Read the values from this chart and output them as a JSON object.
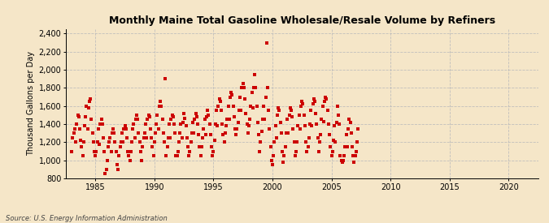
{
  "title": "Monthly Maine Total Gasoline Wholesale/Resale Volume by Refiners",
  "ylabel": "Thousand Gallons per Day",
  "source": "Source: U.S. Energy Information Administration",
  "bg_color": "#F5E6C8",
  "plot_bg_color": "#F5E6C8",
  "marker_color": "#CC0000",
  "marker_size": 5,
  "xlim": [
    1982.5,
    2022.5
  ],
  "ylim": [
    800,
    2450
  ],
  "yticks": [
    800,
    1000,
    1200,
    1400,
    1600,
    1800,
    2000,
    2200,
    2400
  ],
  "xticks": [
    1985,
    1990,
    1995,
    2000,
    2005,
    2010,
    2015,
    2020
  ],
  "grid_color": "#BBBBBB",
  "data_x": [
    1983.0,
    1983.083,
    1983.167,
    1983.25,
    1983.333,
    1983.417,
    1983.5,
    1983.583,
    1983.667,
    1983.75,
    1983.833,
    1983.917,
    1984.0,
    1984.083,
    1984.167,
    1984.25,
    1984.333,
    1984.417,
    1984.5,
    1984.583,
    1984.667,
    1984.75,
    1984.833,
    1984.917,
    1985.0,
    1985.083,
    1985.167,
    1985.25,
    1985.333,
    1985.417,
    1985.5,
    1985.583,
    1985.667,
    1985.75,
    1985.833,
    1985.917,
    1986.0,
    1986.083,
    1986.167,
    1986.25,
    1986.333,
    1986.417,
    1986.5,
    1986.583,
    1986.667,
    1986.75,
    1986.833,
    1986.917,
    1987.0,
    1987.083,
    1987.167,
    1987.25,
    1987.333,
    1987.417,
    1987.5,
    1987.583,
    1987.667,
    1987.75,
    1987.833,
    1987.917,
    1988.0,
    1988.083,
    1988.167,
    1988.25,
    1988.333,
    1988.417,
    1988.5,
    1988.583,
    1988.667,
    1988.75,
    1988.833,
    1988.917,
    1989.0,
    1989.083,
    1989.167,
    1989.25,
    1989.333,
    1989.417,
    1989.5,
    1989.583,
    1989.667,
    1989.75,
    1989.833,
    1989.917,
    1990.0,
    1990.083,
    1990.167,
    1990.25,
    1990.333,
    1990.417,
    1990.5,
    1990.583,
    1990.667,
    1990.75,
    1990.833,
    1990.917,
    1991.0,
    1991.083,
    1991.167,
    1991.25,
    1991.333,
    1991.417,
    1991.5,
    1991.583,
    1991.667,
    1991.75,
    1991.833,
    1991.917,
    1992.0,
    1992.083,
    1992.167,
    1992.25,
    1992.333,
    1992.417,
    1992.5,
    1992.583,
    1992.667,
    1992.75,
    1992.833,
    1992.917,
    1993.0,
    1993.083,
    1993.167,
    1993.25,
    1993.333,
    1993.417,
    1993.5,
    1993.583,
    1993.667,
    1993.75,
    1993.833,
    1993.917,
    1994.0,
    1994.083,
    1994.167,
    1994.25,
    1994.333,
    1994.417,
    1994.5,
    1994.583,
    1994.667,
    1994.75,
    1994.833,
    1994.917,
    1995.0,
    1995.083,
    1995.167,
    1995.25,
    1995.333,
    1995.417,
    1995.5,
    1995.583,
    1995.667,
    1995.75,
    1995.833,
    1995.917,
    1996.0,
    1996.083,
    1996.167,
    1996.25,
    1996.333,
    1996.417,
    1996.5,
    1996.583,
    1996.667,
    1996.75,
    1996.833,
    1996.917,
    1997.0,
    1997.083,
    1997.167,
    1997.25,
    1997.333,
    1997.417,
    1997.5,
    1997.583,
    1997.667,
    1997.75,
    1997.833,
    1997.917,
    1998.0,
    1998.083,
    1998.167,
    1998.25,
    1998.333,
    1998.417,
    1998.5,
    1998.583,
    1998.667,
    1998.75,
    1998.833,
    1998.917,
    1999.0,
    1999.083,
    1999.167,
    1999.25,
    1999.333,
    1999.417,
    1999.5,
    1999.583,
    1999.667,
    1999.75,
    1999.833,
    1999.917,
    2000.0,
    2000.083,
    2000.167,
    2000.25,
    2000.333,
    2000.417,
    2000.5,
    2000.583,
    2000.667,
    2000.75,
    2000.833,
    2000.917,
    2001.0,
    2001.083,
    2001.167,
    2001.25,
    2001.333,
    2001.417,
    2001.5,
    2001.583,
    2001.667,
    2001.75,
    2001.833,
    2001.917,
    2002.0,
    2002.083,
    2002.167,
    2002.25,
    2002.333,
    2002.417,
    2002.5,
    2002.583,
    2002.667,
    2002.75,
    2002.833,
    2002.917,
    2003.0,
    2003.083,
    2003.167,
    2003.25,
    2003.333,
    2003.417,
    2003.5,
    2003.583,
    2003.667,
    2003.75,
    2003.833,
    2003.917,
    2004.0,
    2004.083,
    2004.167,
    2004.25,
    2004.333,
    2004.417,
    2004.5,
    2004.583,
    2004.667,
    2004.75,
    2004.833,
    2004.917,
    2005.0,
    2005.083,
    2005.167,
    2005.25,
    2005.333,
    2005.417,
    2005.5,
    2005.583,
    2005.667,
    2005.75,
    2005.833,
    2005.917,
    2006.0,
    2006.083,
    2006.167,
    2006.25,
    2006.333,
    2006.417,
    2006.5,
    2006.583,
    2006.667,
    2006.75,
    2006.833,
    2006.917,
    2007.0,
    2007.083,
    2007.167,
    2007.25
  ],
  "data_y": [
    1100,
    1250,
    1300,
    1350,
    1200,
    1400,
    1500,
    1480,
    1350,
    1220,
    1150,
    1050,
    1200,
    1380,
    1480,
    1600,
    1350,
    1580,
    1650,
    1680,
    1450,
    1300,
    1200,
    1100,
    1050,
    1100,
    1200,
    1350,
    1180,
    1400,
    1450,
    1400,
    1250,
    1100,
    850,
    900,
    1000,
    1150,
    1200,
    1250,
    1100,
    1300,
    1350,
    1300,
    1200,
    1100,
    950,
    900,
    1050,
    1150,
    1200,
    1300,
    1200,
    1350,
    1380,
    1350,
    1250,
    1100,
    1050,
    1000,
    1100,
    1200,
    1350,
    1400,
    1250,
    1450,
    1500,
    1450,
    1300,
    1200,
    1100,
    1000,
    1150,
    1250,
    1300,
    1400,
    1250,
    1450,
    1500,
    1480,
    1350,
    1250,
    1150,
    1050,
    1200,
    1300,
    1400,
    1500,
    1350,
    1600,
    1650,
    1600,
    1450,
    1300,
    1200,
    1900,
    1050,
    1150,
    1250,
    1400,
    1250,
    1450,
    1500,
    1480,
    1400,
    1300,
    1050,
    1050,
    1100,
    1200,
    1300,
    1400,
    1250,
    1420,
    1520,
    1460,
    1380,
    1250,
    1150,
    1050,
    1100,
    1200,
    1300,
    1420,
    1300,
    1450,
    1520,
    1480,
    1400,
    1280,
    1150,
    1050,
    1150,
    1250,
    1350,
    1450,
    1280,
    1480,
    1550,
    1500,
    1400,
    1280,
    1150,
    1050,
    1100,
    1220,
    1400,
    1550,
    1380,
    1600,
    1680,
    1650,
    1550,
    1400,
    1280,
    1200,
    1300,
    1380,
    1450,
    1600,
    1450,
    1700,
    1750,
    1720,
    1600,
    1480,
    1350,
    1280,
    1350,
    1420,
    1550,
    1700,
    1550,
    1800,
    1850,
    1800,
    1680,
    1520,
    1400,
    1300,
    1380,
    1450,
    1600,
    1750,
    1580,
    1800,
    1950,
    1800,
    1600,
    1420,
    1280,
    1100,
    1200,
    1320,
    1450,
    1600,
    1450,
    1700,
    2300,
    1800,
    1550,
    1350,
    1150,
    1000,
    950,
    1050,
    1200,
    1380,
    1250,
    1500,
    1580,
    1550,
    1420,
    1300,
    1100,
    980,
    1050,
    1150,
    1300,
    1450,
    1300,
    1500,
    1580,
    1550,
    1480,
    1350,
    1200,
    1050,
    1100,
    1200,
    1380,
    1500,
    1350,
    1600,
    1650,
    1620,
    1500,
    1380,
    1200,
    1100,
    1150,
    1250,
    1400,
    1550,
    1380,
    1620,
    1680,
    1650,
    1520,
    1400,
    1250,
    1100,
    1200,
    1280,
    1450,
    1600,
    1430,
    1650,
    1700,
    1680,
    1550,
    1400,
    1280,
    1150,
    1050,
    1100,
    1220,
    1380,
    1200,
    1420,
    1600,
    1500,
    1400,
    1050,
    1000,
    980,
    1000,
    1050,
    1150,
    1280,
    1150,
    1350,
    1450,
    1420,
    1300,
    1150,
    1050,
    980,
    1050,
    1100,
    1200,
    1350
  ]
}
